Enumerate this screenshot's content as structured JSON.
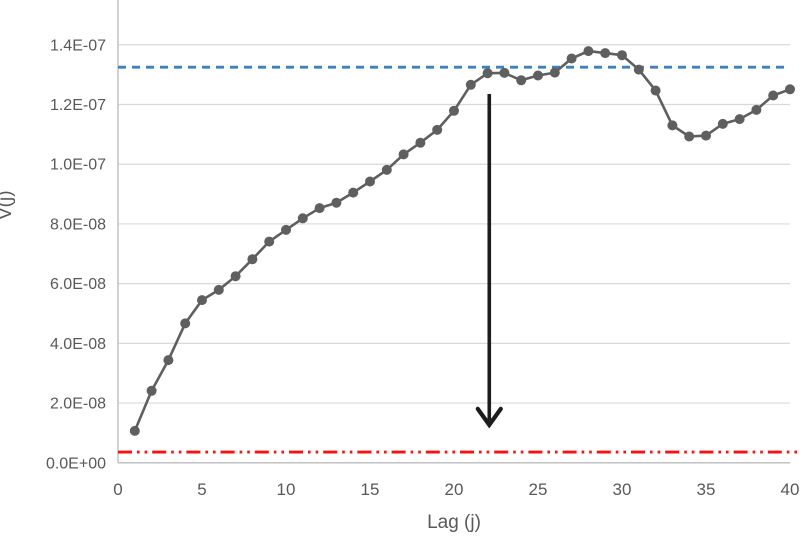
{
  "chart_data": {
    "type": "line",
    "title": "",
    "xlabel": "Lag (j)",
    "ylabel": "V(j)",
    "xlim": [
      0,
      40
    ],
    "ylim_units": [
      0,
      15.5
    ],
    "unit_scale": 1e-08,
    "grid": "horizontal",
    "legend": "none",
    "x_ticks": [
      0,
      5,
      10,
      15,
      20,
      25,
      30,
      35,
      40
    ],
    "y_ticks_units": [
      0,
      2,
      4,
      6,
      8,
      10,
      12,
      14
    ],
    "y_tick_labels": [
      "0.0E+00",
      "2.0E-08",
      "4.0E-08",
      "6.0E-08",
      "8.0E-08",
      "1.0E-07",
      "1.2E-07",
      "1.4E-07"
    ],
    "series": [
      {
        "name": "V(j)",
        "marker": "circle",
        "color": "#5f5f5f",
        "x": [
          1,
          2,
          3,
          4,
          5,
          6,
          7,
          8,
          9,
          10,
          11,
          12,
          13,
          14,
          15,
          16,
          17,
          18,
          19,
          20,
          21,
          22,
          23,
          24,
          25,
          26,
          27,
          28,
          29,
          30,
          31,
          32,
          33,
          34,
          35,
          36,
          37,
          38,
          39,
          40
        ],
        "values_units": [
          1.07,
          2.41,
          3.44,
          4.67,
          5.45,
          5.79,
          6.25,
          6.82,
          7.41,
          7.8,
          8.19,
          8.53,
          8.71,
          9.05,
          9.42,
          9.81,
          10.33,
          10.72,
          11.15,
          11.79,
          12.66,
          13.05,
          13.06,
          12.81,
          12.97,
          13.07,
          13.54,
          13.79,
          13.72,
          13.65,
          13.17,
          12.47,
          11.3,
          10.93,
          10.96,
          11.35,
          11.51,
          11.82,
          12.3,
          12.51
        ]
      }
    ],
    "reference_lines": [
      {
        "name": "upper-threshold-line",
        "value_units": 13.25,
        "style": "dashed",
        "color": "#4080bf"
      },
      {
        "name": "lower-threshold-line",
        "value_units": 0.36,
        "style": "dash-dot-dot",
        "color": "#fe0f0f"
      }
    ],
    "annotation_arrow": {
      "x": 22.1,
      "from_value_units": 12.35,
      "to_value_units": 1.27,
      "color": "#1c1c1c"
    }
  },
  "styles": {
    "grid_color": "#d9d9d9",
    "axis_color": "#bfbfbf",
    "text_color": "#595959",
    "background": "#ffffff"
  }
}
